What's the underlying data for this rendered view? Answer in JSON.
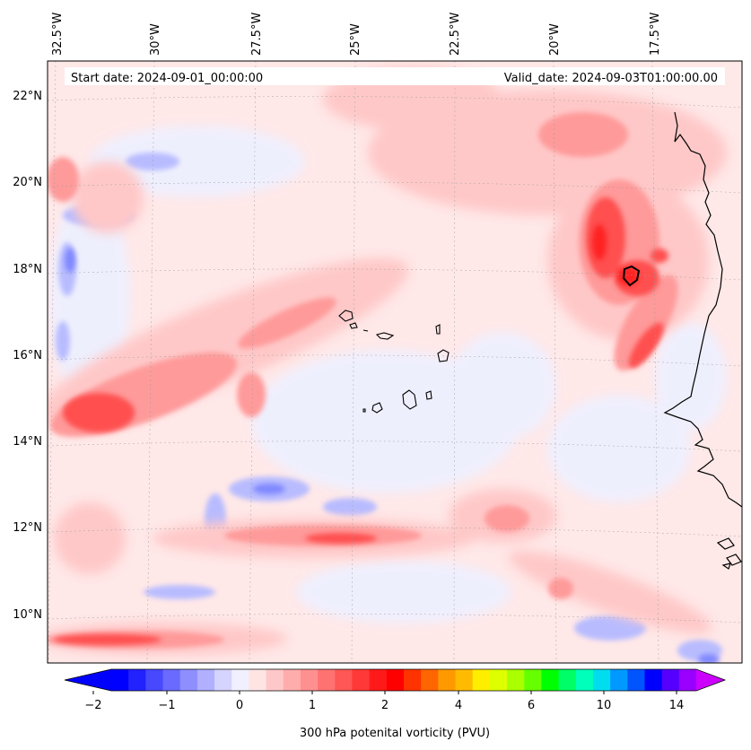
{
  "map": {
    "lon_labels": [
      "32.5°W",
      "30°W",
      "27.5°W",
      "25°W",
      "22.5°W",
      "20°W",
      "17.5°W"
    ],
    "lat_labels": [
      "22°N",
      "20°N",
      "18°N",
      "16°N",
      "14°N",
      "12°N",
      "10°N"
    ],
    "start_text": "Start date: 2024-09-01_00:00:00",
    "valid_text": "Valid_date: 2024-09-03T01:00:00.00",
    "colorbar_label": "300 hPa potenital vorticity (PVU)",
    "colorbar_ticks": [
      "−2",
      "−1",
      "0",
      "1",
      "2",
      "4",
      "6",
      "10",
      "14"
    ],
    "colorbar_colors": [
      "#0000ff",
      "#2222ff",
      "#4848ff",
      "#6a6aff",
      "#8e8eff",
      "#b0b0ff",
      "#d4d4ff",
      "#f0f0ff",
      "#ffe4e4",
      "#ffc8c8",
      "#ffacac",
      "#ff9090",
      "#ff7272",
      "#ff5656",
      "#ff3838",
      "#ff1a1a",
      "#ff0000",
      "#ff3300",
      "#ff6600",
      "#ff9900",
      "#ffbb00",
      "#ffee00",
      "#ddff00",
      "#aaff00",
      "#66ff00",
      "#00ff00",
      "#00ff66",
      "#00ffbb",
      "#00ddee",
      "#0099ff",
      "#0055ff",
      "#0000ff",
      "#5500ff",
      "#9900ff"
    ],
    "colorbar_under": "#0000ff",
    "colorbar_over": "#cc00ff",
    "field_colors": {
      "background": "#ffe8e8",
      "light_blue": "#eef0ff",
      "blue": "#c8ccff",
      "mid_blue": "#a0a8ff",
      "pink": "#ffc8c8",
      "mid_red": "#ff9a9a",
      "red": "#ff6a6a",
      "deep_red": "#ff3a3a",
      "coast": "#000000"
    }
  }
}
